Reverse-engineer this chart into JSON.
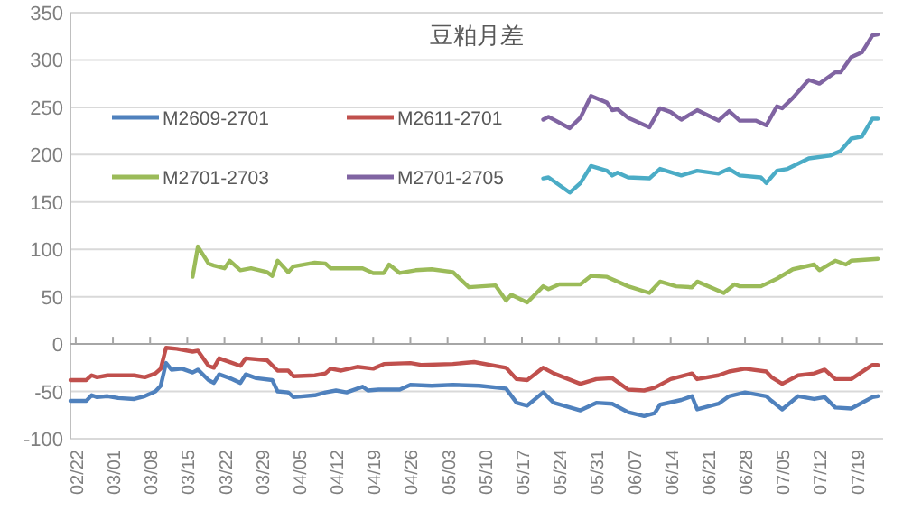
{
  "chart_data": {
    "type": "line",
    "title": "豆粕月差",
    "grid": "y",
    "legend": "top left",
    "xlim": [
      "--02-21",
      "--07-24"
    ],
    "ylim": [
      -100,
      350
    ],
    "yticks": [
      -100,
      -50,
      0,
      50,
      100,
      150,
      200,
      250,
      300,
      350
    ],
    "xticks": [
      {
        "value": "--02-22",
        "label": "02/22"
      },
      {
        "value": "--03-01",
        "label": "03/01"
      },
      {
        "value": "--03-08",
        "label": "03/08"
      },
      {
        "value": "--03-15",
        "label": "03/15"
      },
      {
        "value": "--03-22",
        "label": "03/22"
      },
      {
        "value": "--03-29",
        "label": "03/29"
      },
      {
        "value": "--04-05",
        "label": "04/05"
      },
      {
        "value": "--04-12",
        "label": "04/12"
      },
      {
        "value": "--04-19",
        "label": "04/19"
      },
      {
        "value": "--04-26",
        "label": "04/26"
      },
      {
        "value": "--05-03",
        "label": "05/03"
      },
      {
        "value": "--05-10",
        "label": "05/10"
      },
      {
        "value": "--05-17",
        "label": "05/17"
      },
      {
        "value": "--05-24",
        "label": "05/24"
      },
      {
        "value": "--05-31",
        "label": "05/31"
      },
      {
        "value": "--06-07",
        "label": "06/07"
      },
      {
        "value": "--06-14",
        "label": "06/14"
      },
      {
        "value": "--06-21",
        "label": "06/21"
      },
      {
        "value": "--06-28",
        "label": "06/28"
      },
      {
        "value": "--07-05",
        "label": "07/05"
      },
      {
        "value": "--07-12",
        "label": "07/12"
      },
      {
        "value": "--07-19",
        "label": "07/19"
      }
    ],
    "series": [
      {
        "name": "M2609-2701",
        "color": "#4f81bd",
        "x": [
          "--02-21",
          "--02-24",
          "--02-25",
          "--02-26",
          "--02-28",
          "--03-02",
          "--03-05",
          "--03-07",
          "--03-09",
          "--03-10",
          "--03-11",
          "--03-12",
          "--03-14",
          "--03-16",
          "--03-17",
          "--03-19",
          "--03-20",
          "--03-21",
          "--03-23",
          "--03-25",
          "--03-26",
          "--03-28",
          "--03-31",
          "--04-01",
          "--04-03",
          "--04-04",
          "--04-08",
          "--04-10",
          "--04-12",
          "--04-14",
          "--04-17",
          "--04-18",
          "--04-20",
          "--04-24",
          "--04-26",
          "--04-30",
          "--05-04",
          "--05-09",
          "--05-14",
          "--05-16",
          "--05-18",
          "--05-21",
          "--05-23",
          "--05-28",
          "--05-31",
          "--06-03",
          "--06-06",
          "--06-09",
          "--06-11",
          "--06-12",
          "--06-16",
          "--06-18",
          "--06-19",
          "--06-23",
          "--06-25",
          "--06-28",
          "--07-02",
          "--07-03",
          "--07-05",
          "--07-08",
          "--07-11",
          "--07-13",
          "--07-15",
          "--07-18",
          "--07-22",
          "--07-23"
        ],
        "values": [
          -60,
          -60,
          -54,
          -56,
          -55,
          -57,
          -58,
          -55,
          -50,
          -44,
          -20,
          -27,
          -26,
          -30,
          -27,
          -38,
          -41,
          -32,
          -36,
          -41,
          -32,
          -36,
          -38,
          -50,
          -51,
          -56,
          -54,
          -51,
          -49,
          -51,
          -45,
          -49,
          -48,
          -48,
          -43,
          -44,
          -43,
          -44,
          -47,
          -62,
          -65,
          -51,
          -62,
          -70,
          -62,
          -63,
          -72,
          -76,
          -73,
          -64,
          -59,
          -55,
          -69,
          -63,
          -55,
          -51,
          -55,
          -60,
          -69,
          -55,
          -58,
          -56,
          -67,
          -68,
          -56,
          -55
        ]
      },
      {
        "name": "M2611-2701",
        "color": "#c0504d",
        "x": [
          "--02-21",
          "--02-24",
          "--02-25",
          "--02-26",
          "--02-28",
          "--03-05",
          "--03-07",
          "--03-09",
          "--03-10",
          "--03-11",
          "--03-13",
          "--03-16",
          "--03-17",
          "--03-19",
          "--03-20",
          "--03-21",
          "--03-25",
          "--03-26",
          "--03-30",
          "--04-01",
          "--04-03",
          "--04-04",
          "--04-08",
          "--04-10",
          "--04-11",
          "--04-13",
          "--04-16",
          "--04-19",
          "--04-21",
          "--04-26",
          "--04-28",
          "--05-04",
          "--05-08",
          "--05-14",
          "--05-16",
          "--05-18",
          "--05-21",
          "--05-23",
          "--05-28",
          "--05-31",
          "--06-03",
          "--06-06",
          "--06-09",
          "--06-11",
          "--06-14",
          "--06-18",
          "--06-19",
          "--06-23",
          "--06-25",
          "--06-28",
          "--07-02",
          "--07-03",
          "--07-05",
          "--07-08",
          "--07-11",
          "--07-13",
          "--07-15",
          "--07-18",
          "--07-22",
          "--07-23"
        ],
        "values": [
          -38,
          -38,
          -33,
          -35,
          -33,
          -33,
          -35,
          -31,
          -26,
          -4,
          -5,
          -8,
          -7,
          -23,
          -25,
          -15,
          -23,
          -15,
          -17,
          -28,
          -28,
          -34,
          -33,
          -31,
          -26,
          -28,
          -24,
          -26,
          -21,
          -20,
          -22,
          -21,
          -19,
          -25,
          -37,
          -38,
          -25,
          -31,
          -42,
          -37,
          -36,
          -48,
          -49,
          -46,
          -37,
          -31,
          -37,
          -33,
          -29,
          -26,
          -29,
          -35,
          -42,
          -33,
          -31,
          -27,
          -37,
          -37,
          -22,
          -22
        ]
      },
      {
        "name": "M2701-2703",
        "color": "#9bbb59",
        "x": [
          "--03-16",
          "--03-17",
          "--03-19",
          "--03-20",
          "--03-22",
          "--03-23",
          "--03-25",
          "--03-27",
          "--03-30",
          "--03-31",
          "--04-01",
          "--04-03",
          "--04-04",
          "--04-08",
          "--04-10",
          "--04-11",
          "--04-17",
          "--04-19",
          "--04-21",
          "--04-22",
          "--04-24",
          "--04-27",
          "--04-30",
          "--05-04",
          "--05-07",
          "--05-12",
          "--05-14",
          "--05-15",
          "--05-18",
          "--05-21",
          "--05-22",
          "--05-24",
          "--05-28",
          "--05-30",
          "--06-02",
          "--06-06",
          "--06-10",
          "--06-12",
          "--06-15",
          "--06-18",
          "--06-19",
          "--06-24",
          "--06-26",
          "--06-27",
          "--07-01",
          "--07-04",
          "--07-07",
          "--07-11",
          "--07-12",
          "--07-15",
          "--07-17",
          "--07-18",
          "--07-23"
        ],
        "values": [
          71,
          103,
          85,
          83,
          80,
          88,
          78,
          80,
          76,
          72,
          88,
          76,
          82,
          86,
          85,
          80,
          80,
          75,
          75,
          84,
          75,
          78,
          79,
          76,
          60,
          62,
          46,
          52,
          44,
          61,
          58,
          63,
          63,
          72,
          71,
          61,
          54,
          66,
          61,
          60,
          66,
          54,
          63,
          61,
          61,
          69,
          79,
          84,
          78,
          88,
          84,
          88,
          90
        ]
      },
      {
        "name": "M2701-2705",
        "color": "#8064a2",
        "x": [
          "--05-21",
          "--05-22",
          "--05-26",
          "--05-28",
          "--05-30",
          "--06-02",
          "--06-03",
          "--06-04",
          "--06-06",
          "--06-10",
          "--06-12",
          "--06-14",
          "--06-16",
          "--06-19",
          "--06-23",
          "--06-25",
          "--06-27",
          "--06-30",
          "--07-02",
          "--07-04",
          "--07-05",
          "--07-07",
          "--07-10",
          "--07-12",
          "--07-15",
          "--07-16",
          "--07-18",
          "--07-20",
          "--07-22",
          "--07-23"
        ],
        "values": [
          237,
          240,
          228,
          239,
          262,
          255,
          247,
          248,
          239,
          229,
          249,
          245,
          237,
          247,
          236,
          246,
          236,
          236,
          231,
          251,
          249,
          260,
          279,
          275,
          287,
          287,
          303,
          308,
          326,
          327
        ]
      },
      {
        "color": "#4bacc6",
        "x": [
          "--05-21",
          "--05-22",
          "--05-26",
          "--05-28",
          "--05-30",
          "--06-02",
          "--06-03",
          "--06-04",
          "--06-06",
          "--06-10",
          "--06-12",
          "--06-16",
          "--06-19",
          "--06-23",
          "--06-25",
          "--06-27",
          "--07-01",
          "--07-02",
          "--07-04",
          "--07-06",
          "--07-10",
          "--07-14",
          "--07-16",
          "--07-18",
          "--07-20",
          "--07-22",
          "--07-23"
        ],
        "values": [
          175,
          176,
          160,
          170,
          188,
          183,
          178,
          181,
          176,
          175,
          185,
          178,
          183,
          180,
          185,
          178,
          176,
          170,
          183,
          185,
          196,
          199,
          204,
          217,
          219,
          238,
          238
        ]
      }
    ]
  }
}
